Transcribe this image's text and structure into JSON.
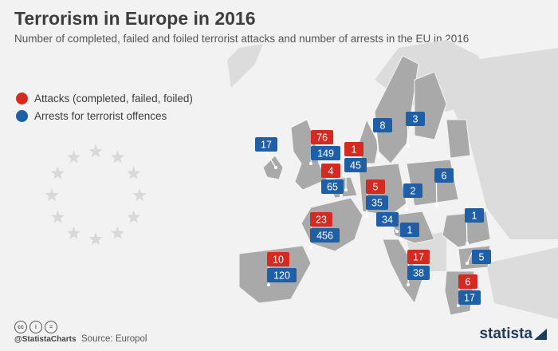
{
  "title": "Terrorism in Europe in 2016",
  "subtitle": "Number of completed, failed and foiled terrorist attacks and number of arrests in the EU in 2016",
  "legend": {
    "attacks_label": "Attacks (completed, failed, foiled)",
    "arrests_label": "Arrests for terrorist offences"
  },
  "colors": {
    "attacks": "#d42a21",
    "arrests": "#1f5fa8",
    "eu_land": "#a9a9a9",
    "other_land": "#dcdcdc",
    "background": "#f2f2f2"
  },
  "markers": [
    {
      "country": "Ireland",
      "attacks": null,
      "arrests": "17"
    },
    {
      "country": "United Kingdom",
      "attacks": "76",
      "arrests": "149"
    },
    {
      "country": "Netherlands",
      "attacks": "4",
      "arrests": "65"
    },
    {
      "country": "Denmark",
      "attacks": "1",
      "arrests": "45"
    },
    {
      "country": "Sweden",
      "attacks": null,
      "arrests": "8"
    },
    {
      "country": "Finland",
      "attacks": null,
      "arrests": "3"
    },
    {
      "country": "Germany",
      "attacks": "5",
      "arrests": "35"
    },
    {
      "country": "Poland",
      "attacks": null,
      "arrests": "6"
    },
    {
      "country": "Czech Republic",
      "attacks": null,
      "arrests": "2"
    },
    {
      "country": "Austria",
      "attacks": null,
      "arrests": "34"
    },
    {
      "country": "Slovenia",
      "attacks": null,
      "arrests": "1"
    },
    {
      "country": "France",
      "attacks": "23",
      "arrests": "456"
    },
    {
      "country": "Romania",
      "attacks": null,
      "arrests": "1"
    },
    {
      "country": "Bulgaria",
      "attacks": null,
      "arrests": "5"
    },
    {
      "country": "Italy",
      "attacks": "17",
      "arrests": "38"
    },
    {
      "country": "Spain",
      "attacks": "10",
      "arrests": "120"
    },
    {
      "country": "Greece",
      "attacks": "6",
      "arrests": "17"
    }
  ],
  "footer": {
    "handle": "@StatistaCharts",
    "source": "Source: Europol",
    "brand": "statista"
  }
}
